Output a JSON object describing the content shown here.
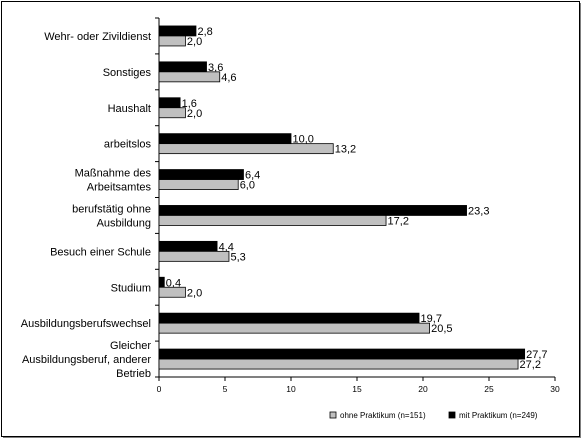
{
  "chart_data": {
    "type": "bar",
    "orientation": "horizontal",
    "categories": [
      [
        "Wehr- oder Zivildienst"
      ],
      [
        "Sonstiges"
      ],
      [
        "Haushalt"
      ],
      [
        "arbeitslos"
      ],
      [
        "Maßnahme des",
        "Arbeitsamtes"
      ],
      [
        "berufstätig ohne",
        "Ausbildung"
      ],
      [
        "Besuch einer Schule"
      ],
      [
        "Studium"
      ],
      [
        "Ausbildungsberufswechsel"
      ],
      [
        "Gleicher",
        "Ausbildungsberuf, anderer",
        "Betrieb"
      ]
    ],
    "series": [
      {
        "name": "mit Praktikum (n=249)",
        "color": "#000000",
        "values": [
          2.8,
          3.6,
          1.6,
          10.0,
          6.4,
          23.3,
          4.4,
          0.4,
          19.7,
          27.7
        ],
        "labels": [
          "2,8",
          "3,6",
          "1,6",
          "10,0",
          "6,4",
          "23,3",
          "4,4",
          "0,4",
          "19,7",
          "27,7"
        ]
      },
      {
        "name": "ohne Praktikum (n=151)",
        "color": "#c0c0c0",
        "values": [
          2.0,
          4.6,
          2.0,
          13.2,
          6.0,
          17.2,
          5.3,
          2.0,
          20.5,
          27.2
        ],
        "labels": [
          "2,0",
          "4,6",
          "2,0",
          "13,2",
          "6,0",
          "17,2",
          "5,3",
          "2,0",
          "20,5",
          "27,2"
        ]
      }
    ],
    "xlim": [
      0,
      30
    ],
    "xticks": [
      0,
      5,
      10,
      15,
      20,
      25,
      30
    ],
    "xticklabels": [
      "0",
      "5",
      "10",
      "15",
      "20",
      "25",
      "30"
    ],
    "legend": {
      "position": "bottom-right",
      "order": [
        "ohne Praktikum (n=151)",
        "mit Praktikum (n=249)"
      ]
    },
    "grid": false,
    "title": "",
    "xlabel": "",
    "ylabel": ""
  }
}
